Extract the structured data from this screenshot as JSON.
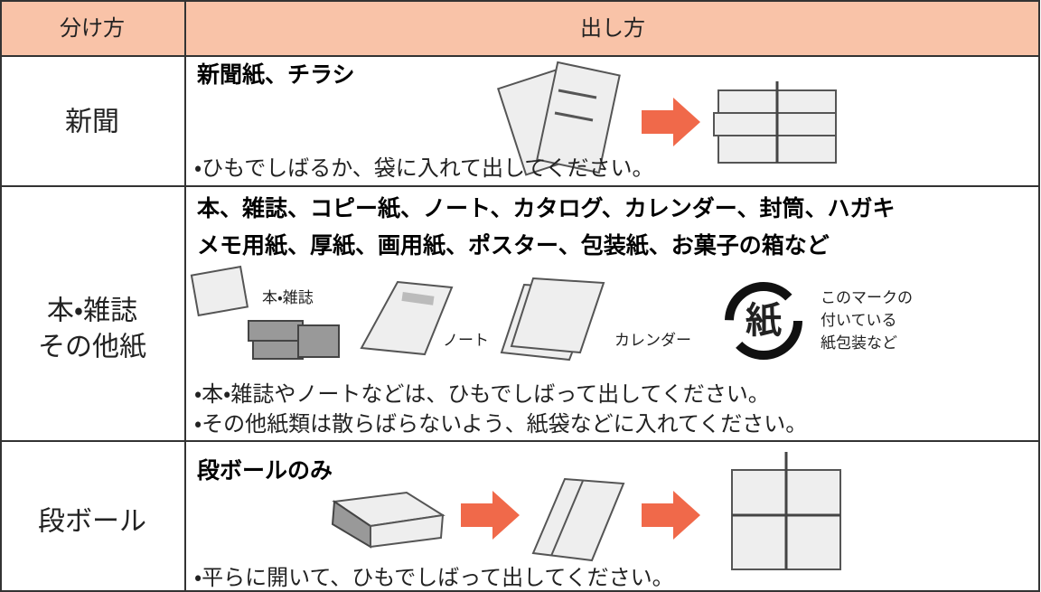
{
  "table": {
    "header": [
      "分け方",
      "出し方"
    ],
    "rows": [
      {
        "category_lines": [
          "新聞"
        ],
        "heading_lines": [
          "新聞紙、チラシ"
        ],
        "notes": [
          "・ひもでしばるか、袋に入れて出してください。"
        ]
      },
      {
        "category_lines": [
          "本・雑誌",
          "その他紙"
        ],
        "heading_lines": [
          "本、雑誌、コピー紙、ノート、カタログ、カレンダー、封筒、ハガキ",
          "メモ用紙、厚紙、画用紙、ポスター、包装紙、お菓子の箱など"
        ],
        "image_labels": [
          "本・雑誌",
          "ノート",
          "カレンダー"
        ],
        "mark_symbol": "紙",
        "mark_caption_lines": [
          "このマークの",
          "付いている",
          "紙包装など"
        ],
        "notes": [
          "・本・雑誌やノートなどは、ひもでしばって出してください。",
          "・その他紙類は散らばらないよう、紙袋などに入れてください。"
        ]
      },
      {
        "category_lines": [
          "段ボール"
        ],
        "heading_lines": [
          "段ボールのみ"
        ],
        "notes": [
          "・平らに開いて、ひもでしばって出してください。"
        ]
      }
    ]
  }
}
